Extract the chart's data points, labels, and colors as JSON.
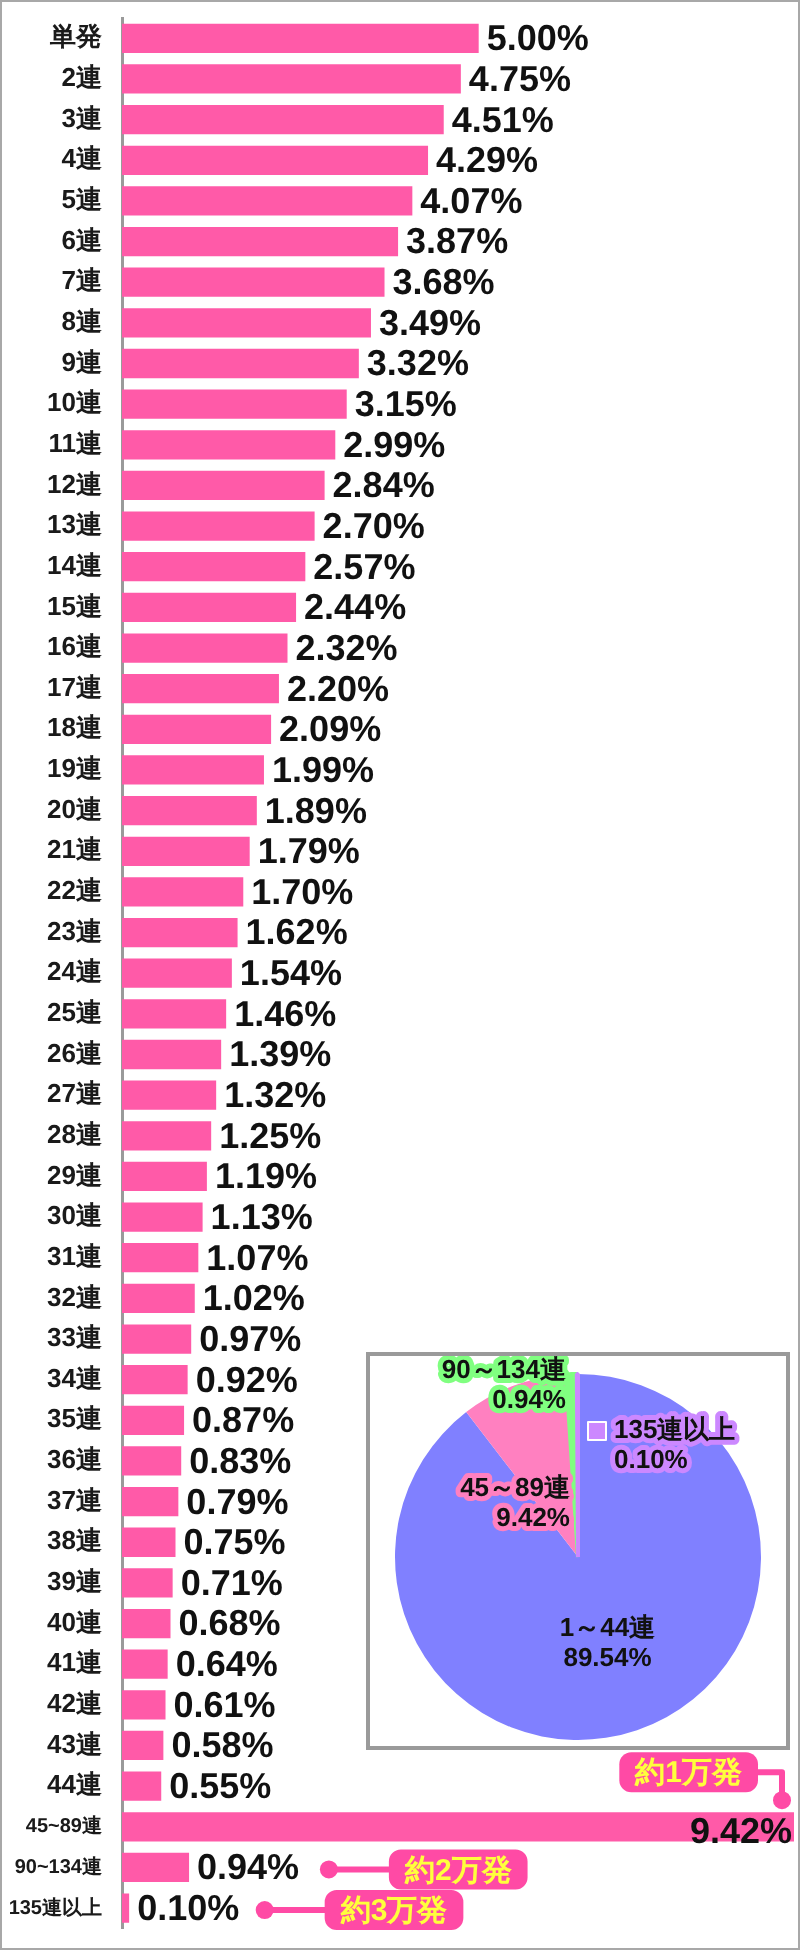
{
  "chart_data": [
    {
      "type": "bar",
      "orientation": "horizontal",
      "tick_labels": "y",
      "color": "#ff5aa8",
      "categories": [
        "単発",
        "2連",
        "3連",
        "4連",
        "5連",
        "6連",
        "7連",
        "8連",
        "9連",
        "10連",
        "11連",
        "12連",
        "13連",
        "14連",
        "15連",
        "16連",
        "17連",
        "18連",
        "19連",
        "20連",
        "21連",
        "22連",
        "23連",
        "24連",
        "25連",
        "26連",
        "27連",
        "28連",
        "29連",
        "30連",
        "31連",
        "32連",
        "33連",
        "34連",
        "35連",
        "36連",
        "37連",
        "38連",
        "39連",
        "40連",
        "41連",
        "42連",
        "43連",
        "44連",
        "45~89連",
        "90~134連",
        "135連以上"
      ],
      "values": [
        5.0,
        4.75,
        4.51,
        4.29,
        4.07,
        3.87,
        3.68,
        3.49,
        3.32,
        3.15,
        2.99,
        2.84,
        2.7,
        2.57,
        2.44,
        2.32,
        2.2,
        2.09,
        1.99,
        1.89,
        1.79,
        1.7,
        1.62,
        1.54,
        1.46,
        1.39,
        1.32,
        1.25,
        1.19,
        1.13,
        1.07,
        1.02,
        0.97,
        0.92,
        0.87,
        0.83,
        0.79,
        0.75,
        0.71,
        0.68,
        0.64,
        0.61,
        0.58,
        0.55,
        9.42,
        0.94,
        0.1
      ],
      "value_labels": [
        "5.00%",
        "4.75%",
        "4.51%",
        "4.29%",
        "4.07%",
        "3.87%",
        "3.68%",
        "3.49%",
        "3.32%",
        "3.15%",
        "2.99%",
        "2.84%",
        "2.70%",
        "2.57%",
        "2.44%",
        "2.32%",
        "2.20%",
        "2.09%",
        "1.99%",
        "1.89%",
        "1.79%",
        "1.70%",
        "1.62%",
        "1.54%",
        "1.46%",
        "1.39%",
        "1.32%",
        "1.25%",
        "1.19%",
        "1.13%",
        "1.07%",
        "1.02%",
        "0.97%",
        "0.92%",
        "0.87%",
        "0.83%",
        "0.79%",
        "0.75%",
        "0.71%",
        "0.68%",
        "0.64%",
        "0.61%",
        "0.58%",
        "0.55%",
        "9.42%",
        "0.94%",
        "0.10%"
      ],
      "annotations": [
        {
          "text": "約1万発",
          "x": 9.42,
          "y": "45~89連"
        },
        {
          "text": "約2万発",
          "x": 2.9,
          "y": "90~134連"
        },
        {
          "text": "約3万発",
          "x": 2.0,
          "y": "135連以上"
        }
      ]
    },
    {
      "type": "pie",
      "categories": [
        "1～44連",
        "45～89連",
        "90～134連",
        "135連以上"
      ],
      "values": [
        89.54,
        9.42,
        0.94,
        0.1
      ],
      "colors": [
        "#8080ff",
        "#ff80c0",
        "#80ff80",
        "#cc88ff"
      ],
      "value_labels": [
        "89.54%",
        "9.42%",
        "0.94%",
        "0.10%"
      ]
    }
  ]
}
